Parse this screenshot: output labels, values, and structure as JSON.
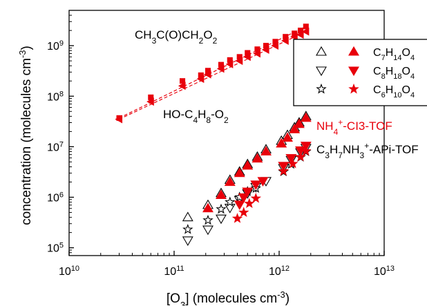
{
  "chart_data": {
    "type": "scatter",
    "xlabel": "[O3] (molecules cm-3)",
    "ylabel": "concentration (molecules cm-3)",
    "x_scale": "log",
    "y_scale": "log",
    "xlim": [
      10000000000.0,
      10000000000000.0
    ],
    "ylim": [
      70000,
      5000000000
    ],
    "x_tick_labels": [
      "10^10",
      "10^11",
      "10^12",
      "10^13"
    ],
    "y_tick_labels": [
      "10^5",
      "10^6",
      "10^7",
      "10^8",
      "10^9"
    ],
    "grid": false,
    "legend_position": "right",
    "annotations": [
      {
        "name": "CH3C(O)CH2O2",
        "color": "#000000"
      },
      {
        "name": "HO-C4H8-O2",
        "color": "#000000"
      },
      {
        "name": "NH4+-CI3-TOF",
        "color": "#e8000b"
      },
      {
        "name": "C3H7NH3+-APi-TOF",
        "color": "#000000"
      }
    ],
    "series": [
      {
        "name": "CH3C(O)CH2O2",
        "marker": "square",
        "color": "#e8000b",
        "line": "dashed",
        "points": [
          [
            30000000000.0,
            37000000.0
          ],
          [
            60000000000.0,
            95000000.0
          ],
          [
            120000000000.0,
            200000000.0
          ],
          [
            180000000000.0,
            260000000.0
          ],
          [
            210000000000.0,
            320000000.0
          ],
          [
            280000000000.0,
            420000000.0
          ],
          [
            340000000000.0,
            520000000.0
          ],
          [
            420000000000.0,
            600000000.0
          ],
          [
            500000000000.0,
            720000000.0
          ],
          [
            620000000000.0,
            850000000.0
          ],
          [
            750000000000.0,
            1000000000.0
          ],
          [
            920000000000.0,
            1200000000.0
          ],
          [
            1150000000000.0,
            1500000000.0
          ],
          [
            1400000000000.0,
            1750000000.0
          ],
          [
            1600000000000.0,
            2000000000.0
          ],
          [
            1800000000000.0,
            2400000000.0
          ]
        ]
      },
      {
        "name": "HO-C4H8-O2",
        "marker": "triangle-left",
        "color": "#e8000b",
        "line": "dashed",
        "points": [
          [
            30000000000.0,
            35000000.0
          ],
          [
            60000000000.0,
            78000000.0
          ],
          [
            120000000000.0,
            160000000.0
          ],
          [
            180000000000.0,
            220000000.0
          ],
          [
            210000000000.0,
            270000000.0
          ],
          [
            280000000000.0,
            350000000.0
          ],
          [
            340000000000.0,
            430000000.0
          ],
          [
            420000000000.0,
            500000000.0
          ],
          [
            500000000000.0,
            600000000.0
          ],
          [
            620000000000.0,
            700000000.0
          ],
          [
            750000000000.0,
            830000000.0
          ],
          [
            920000000000.0,
            1000000000.0
          ],
          [
            1150000000000.0,
            1250000000.0
          ],
          [
            1400000000000.0,
            1500000000.0
          ],
          [
            1600000000000.0,
            1650000000.0
          ],
          [
            1800000000000.0,
            1900000000.0
          ]
        ]
      },
      {
        "name": "C7H14O4 CI3",
        "marker": "triangle-up",
        "color": "#e8000b",
        "filled": true,
        "points": [
          [
            210000000000.0,
            600000.0
          ],
          [
            280000000000.0,
            1100000.0
          ],
          [
            340000000000.0,
            2000000.0
          ],
          [
            420000000000.0,
            3000000.0
          ],
          [
            500000000000.0,
            4200000.0
          ],
          [
            620000000000.0,
            5800000.0
          ],
          [
            750000000000.0,
            8000000.0
          ],
          [
            1050000000000.0,
            11500000.0
          ],
          [
            1200000000000.0,
            15000000.0
          ],
          [
            1400000000000.0,
            22000000.0
          ],
          [
            1550000000000.0,
            28000000.0
          ],
          [
            1800000000000.0,
            37000000.0
          ]
        ]
      },
      {
        "name": "C8H18O4 CI3",
        "marker": "triangle-down",
        "color": "#e8000b",
        "filled": true,
        "points": [
          [
            420000000000.0,
            720000.0
          ],
          [
            460000000000.0,
            1000000.0
          ],
          [
            500000000000.0,
            1300000.0
          ],
          [
            600000000000.0,
            1800000.0
          ],
          [
            700000000000.0,
            2100000.0
          ],
          [
            1100000000000.0,
            4200000.0
          ],
          [
            1300000000000.0,
            6000000.0
          ],
          [
            1600000000000.0,
            8500000.0
          ],
          [
            1800000000000.0,
            10500000.0
          ]
        ]
      },
      {
        "name": "C6H10O4 CI3",
        "marker": "star",
        "color": "#e8000b",
        "filled": true,
        "points": [
          [
            400000000000.0,
            380000.0
          ],
          [
            460000000000.0,
            500000.0
          ],
          [
            520000000000.0,
            750000.0
          ],
          [
            600000000000.0,
            950000.0
          ],
          [
            1100000000000.0,
            3300000.0
          ],
          [
            1350000000000.0,
            4600000.0
          ],
          [
            1600000000000.0,
            6300000.0
          ],
          [
            1800000000000.0,
            8200000.0
          ]
        ]
      },
      {
        "name": "C7H14O4 APi",
        "marker": "triangle-up",
        "color": "#000000",
        "filled": false,
        "points": [
          [
            135000000000.0,
            400000.0
          ],
          [
            210000000000.0,
            700000.0
          ],
          [
            280000000000.0,
            1200000.0
          ],
          [
            340000000000.0,
            2200000.0
          ],
          [
            420000000000.0,
            3200000.0
          ],
          [
            500000000000.0,
            4500000.0
          ],
          [
            620000000000.0,
            6300000.0
          ],
          [
            750000000000.0,
            8800000.0
          ],
          [
            1050000000000.0,
            13000000.0
          ],
          [
            1200000000000.0,
            17000000.0
          ],
          [
            1400000000000.0,
            24000000.0
          ],
          [
            1550000000000.0,
            30000000.0
          ],
          [
            1800000000000.0,
            40000000.0
          ]
        ]
      },
      {
        "name": "C8H18O4 APi",
        "marker": "triangle-down",
        "color": "#000000",
        "filled": false,
        "points": [
          [
            135000000000.0,
            140000.0
          ],
          [
            210000000000.0,
            230000.0
          ],
          [
            280000000000.0,
            380000.0
          ],
          [
            340000000000.0,
            620000.0
          ],
          [
            420000000000.0,
            880000.0
          ],
          [
            500000000000.0,
            1200000.0
          ],
          [
            600000000000.0,
            1600000.0
          ],
          [
            750000000000.0,
            2100000.0
          ],
          [
            1100000000000.0,
            3800000.0
          ],
          [
            1300000000000.0,
            5500000.0
          ],
          [
            1600000000000.0,
            7800000.0
          ],
          [
            1800000000000.0,
            9500000.0
          ]
        ]
      },
      {
        "name": "C6H10O4 APi",
        "marker": "star",
        "color": "#000000",
        "filled": false,
        "points": [
          [
            135000000000.0,
            230000.0
          ],
          [
            210000000000.0,
            350000.0
          ],
          [
            280000000000.0,
            580000.0
          ],
          [
            340000000000.0,
            800000.0
          ],
          [
            420000000000.0,
            1000000.0
          ],
          [
            500000000000.0,
            1300000.0
          ],
          [
            600000000000.0,
            1500000.0
          ],
          [
            1100000000000.0,
            3200000.0
          ],
          [
            1300000000000.0,
            4500000.0
          ],
          [
            1600000000000.0,
            6200000.0
          ],
          [
            1800000000000.0,
            8000000.0
          ]
        ]
      }
    ],
    "legend": {
      "rows": [
        {
          "label": "C7H14O4",
          "marker": "triangle-up"
        },
        {
          "label": "C8H18O4",
          "marker": "triangle-down"
        },
        {
          "label": "C6H10O4",
          "marker": "star"
        }
      ]
    }
  }
}
